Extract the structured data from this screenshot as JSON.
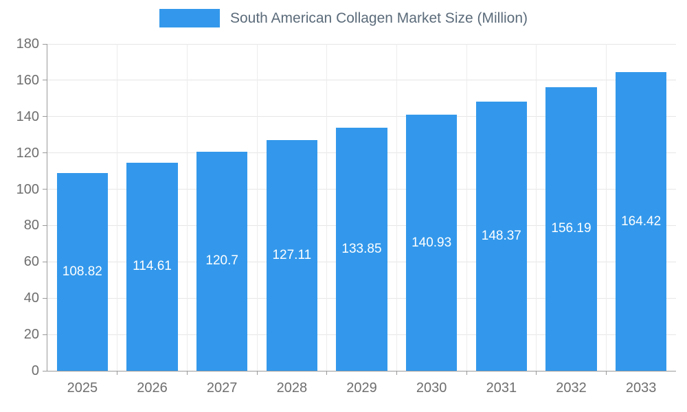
{
  "legend": {
    "label": "South American Collagen Market Size (Million)",
    "swatch_color": "#3398eb"
  },
  "chart_data": {
    "type": "bar",
    "title": "South American Collagen Market Size (Million)",
    "categories": [
      "2025",
      "2026",
      "2027",
      "2028",
      "2029",
      "2030",
      "2031",
      "2032",
      "2033"
    ],
    "values": [
      108.82,
      114.61,
      120.7,
      127.11,
      133.85,
      140.93,
      148.37,
      156.19,
      164.42
    ],
    "xlabel": "",
    "ylabel": "",
    "ylim": [
      0,
      180
    ],
    "ytick_step": 20,
    "yticks": [
      0,
      20,
      40,
      60,
      80,
      100,
      120,
      140,
      160,
      180
    ],
    "grid": true,
    "legend_position": "top",
    "bar_color": "#3398eb",
    "value_label_color": "#ffffff",
    "axis_color": "#999999",
    "tick_label_color": "#6e6e6e"
  }
}
